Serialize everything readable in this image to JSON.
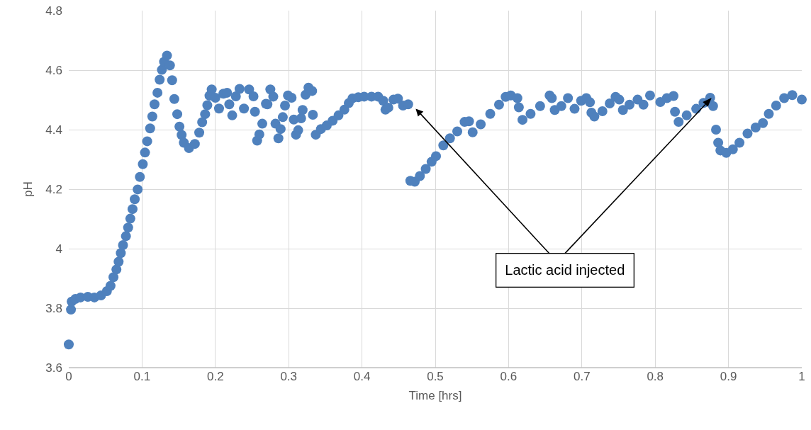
{
  "chart_data": {
    "type": "scatter",
    "xlabel": "Time [hrs]",
    "ylabel": "pH",
    "marker": "circle",
    "grid": true,
    "xlim": [
      0,
      1
    ],
    "xticks": [
      0,
      0.1,
      0.2,
      0.3,
      0.4,
      0.5,
      0.6,
      0.7,
      0.8,
      0.9,
      1
    ],
    "ylim": [
      3.6,
      4.8
    ],
    "yticks": [
      3.6,
      3.8,
      4,
      4.2,
      4.4,
      4.6,
      4.8
    ],
    "annotations": [
      {
        "text": "Lactic acid injected",
        "x": 0.472,
        "y": 4.474
      }
    ],
    "series": [
      {
        "color": "#4f81bd",
        "x": [
          0,
          0.003,
          0.004,
          0.009,
          0.016,
          0.026,
          0.035,
          0.044,
          0.052,
          0.057,
          0.061,
          0.065,
          0.068,
          0.071,
          0.074,
          0.078,
          0.081,
          0.084,
          0.087,
          0.09,
          0.094,
          0.097,
          0.101,
          0.104,
          0.107,
          0.111,
          0.114,
          0.117,
          0.121,
          0.124,
          0.127,
          0.13,
          0.134,
          0.138,
          0.141,
          0.144,
          0.148,
          0.151,
          0.154,
          0.157,
          0.164,
          0.172,
          0.178,
          0.182,
          0.186,
          0.189,
          0.192,
          0.195,
          0.2,
          0.205,
          0.211,
          0.216,
          0.219,
          0.223,
          0.228,
          0.233,
          0.239,
          0.246,
          0.252,
          0.254,
          0.257,
          0.26,
          0.264,
          0.269,
          0.271,
          0.275,
          0.279,
          0.282,
          0.286,
          0.289,
          0.292,
          0.295,
          0.299,
          0.304,
          0.307,
          0.31,
          0.313,
          0.317,
          0.319,
          0.323,
          0.327,
          0.332,
          0.333,
          0.337,
          0.344,
          0.352,
          0.36,
          0.368,
          0.376,
          0.382,
          0.387,
          0.395,
          0.403,
          0.413,
          0.422,
          0.429,
          0.432,
          0.436,
          0.443,
          0.449,
          0.456,
          0.463,
          0.466,
          0.472,
          0.479,
          0.487,
          0.495,
          0.501,
          0.511,
          0.52,
          0.53,
          0.54,
          0.546,
          0.551,
          0.562,
          0.575,
          0.587,
          0.596,
          0.603,
          0.612,
          0.614,
          0.619,
          0.63,
          0.643,
          0.656,
          0.659,
          0.663,
          0.672,
          0.681,
          0.69,
          0.699,
          0.706,
          0.711,
          0.713,
          0.717,
          0.728,
          0.738,
          0.746,
          0.751,
          0.756,
          0.765,
          0.776,
          0.784,
          0.793,
          0.807,
          0.816,
          0.825,
          0.827,
          0.832,
          0.843,
          0.856,
          0.866,
          0.875,
          0.879,
          0.883,
          0.886,
          0.889,
          0.897,
          0.906,
          0.915,
          0.926,
          0.937,
          0.947,
          0.955,
          0.965,
          0.976,
          0.987,
          1
        ],
        "values": [
          3.678,
          3.795,
          3.822,
          3.831,
          3.836,
          3.838,
          3.836,
          3.843,
          3.857,
          3.875,
          3.904,
          3.93,
          3.956,
          3.985,
          4.012,
          4.042,
          4.071,
          4.101,
          4.133,
          4.166,
          4.199,
          4.241,
          4.284,
          4.323,
          4.361,
          4.404,
          4.444,
          4.485,
          4.524,
          4.568,
          4.601,
          4.628,
          4.649,
          4.616,
          4.566,
          4.503,
          4.452,
          4.41,
          4.382,
          4.356,
          4.338,
          4.352,
          4.39,
          4.425,
          4.452,
          4.482,
          4.514,
          4.535,
          4.507,
          4.471,
          4.521,
          4.524,
          4.485,
          4.448,
          4.512,
          4.537,
          4.471,
          4.535,
          4.512,
          4.46,
          4.363,
          4.384,
          4.42,
          4.487,
          4.485,
          4.535,
          4.511,
          4.42,
          4.371,
          4.402,
          4.442,
          4.481,
          4.515,
          4.507,
          4.434,
          4.383,
          4.398,
          4.438,
          4.466,
          4.517,
          4.541,
          4.53,
          4.45,
          4.383,
          4.402,
          4.414,
          4.43,
          4.448,
          4.467,
          4.489,
          4.505,
          4.509,
          4.511,
          4.511,
          4.511,
          4.497,
          4.467,
          4.474,
          4.501,
          4.504,
          4.481,
          4.485,
          4.228,
          4.225,
          4.244,
          4.268,
          4.292,
          4.311,
          4.347,
          4.371,
          4.394,
          4.426,
          4.428,
          4.391,
          4.418,
          4.453,
          4.484,
          4.51,
          4.515,
          4.506,
          4.475,
          4.433,
          4.453,
          4.479,
          4.515,
          4.506,
          4.466,
          4.479,
          4.506,
          4.47,
          4.497,
          4.506,
          4.492,
          4.457,
          4.444,
          4.462,
          4.488,
          4.51,
          4.501,
          4.466,
          4.484,
          4.501,
          4.484,
          4.515,
          4.493,
          4.506,
          4.513,
          4.46,
          4.426,
          4.448,
          4.47,
          4.49,
          4.507,
          4.479,
          4.4,
          4.356,
          4.33,
          4.322,
          4.334,
          4.356,
          4.387,
          4.407,
          4.422,
          4.453,
          4.481,
          4.506,
          4.516,
          4.501
        ]
      }
    ]
  }
}
